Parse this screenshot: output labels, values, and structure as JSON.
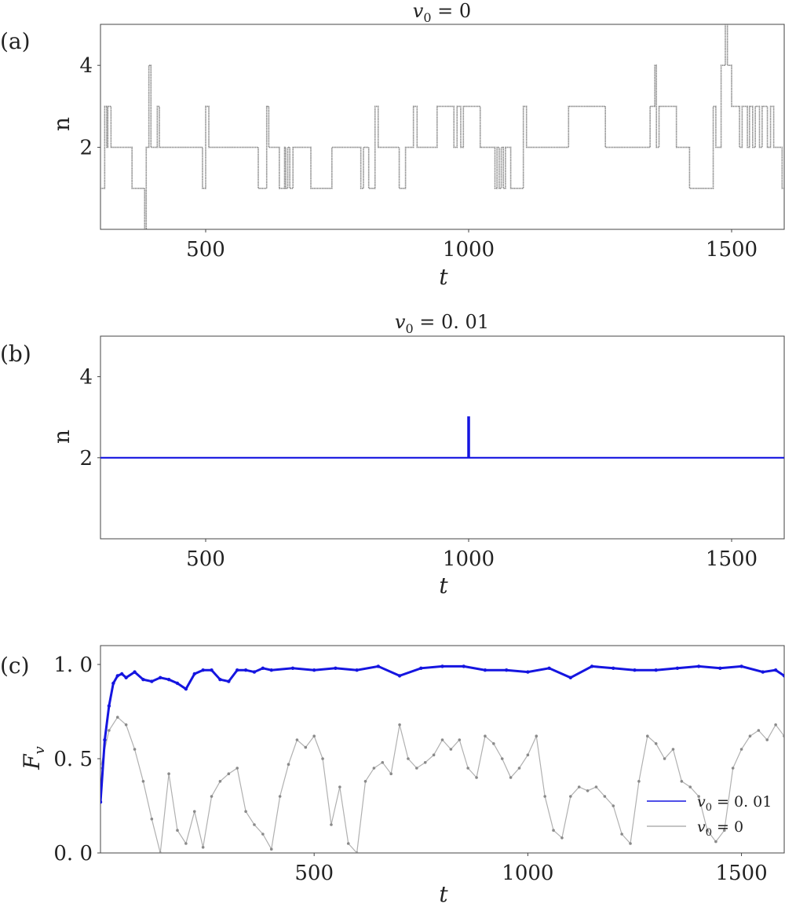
{
  "panels": {
    "a": {
      "label": "(a)",
      "title_main": "v",
      "title_sub": "0",
      "title_rest": " = 0",
      "ylabel": "n",
      "xlabel": "t"
    },
    "b": {
      "label": "(b)",
      "title_main": "v",
      "title_sub": "0",
      "title_rest": " = 0. 01",
      "ylabel": "n",
      "xlabel": "t"
    },
    "c": {
      "label": "(c)",
      "ylabel_main": "F",
      "ylabel_sub": "v",
      "xlabel": "t",
      "legend": [
        {
          "main": "v",
          "sub": "0",
          "rest": " = 0. 01",
          "color": "#1515e0"
        },
        {
          "main": "v",
          "sub": "0",
          "rest": " = 0",
          "color": "#b0b0b0"
        }
      ]
    }
  },
  "colors": {
    "gray_series": "#8a8a8a",
    "blue_series": "#1515e0",
    "light_gray": "#b0b0b0"
  },
  "chart_data": [
    {
      "id": "a",
      "type": "line",
      "xlim": [
        300,
        1600
      ],
      "ylim": [
        0.0,
        5.0
      ],
      "xticks": [
        500,
        1000,
        1500
      ],
      "xtick_labels": [
        "500",
        "1000",
        "1500"
      ],
      "yticks": [
        2,
        4
      ],
      "ytick_labels": [
        "2",
        "4"
      ],
      "grid": false,
      "steps": [
        [
          300,
          1
        ],
        [
          308,
          3
        ],
        [
          312,
          2
        ],
        [
          314,
          3
        ],
        [
          320,
          2
        ],
        [
          360,
          1
        ],
        [
          384,
          0
        ],
        [
          387,
          2
        ],
        [
          392,
          4
        ],
        [
          396,
          2
        ],
        [
          408,
          3
        ],
        [
          412,
          2
        ],
        [
          494,
          1
        ],
        [
          500,
          3
        ],
        [
          506,
          2
        ],
        [
          600,
          1
        ],
        [
          616,
          3
        ],
        [
          620,
          2
        ],
        [
          640,
          1
        ],
        [
          650,
          2
        ],
        [
          652,
          1
        ],
        [
          656,
          2
        ],
        [
          660,
          1
        ],
        [
          666,
          2
        ],
        [
          700,
          1
        ],
        [
          740,
          2
        ],
        [
          795,
          1
        ],
        [
          800,
          2
        ],
        [
          810,
          1
        ],
        [
          822,
          3
        ],
        [
          828,
          2
        ],
        [
          868,
          1
        ],
        [
          880,
          2
        ],
        [
          895,
          3
        ],
        [
          902,
          2
        ],
        [
          940,
          3
        ],
        [
          972,
          2
        ],
        [
          978,
          3
        ],
        [
          985,
          2
        ],
        [
          990,
          3
        ],
        [
          1022,
          2
        ],
        [
          1050,
          1
        ],
        [
          1054,
          2
        ],
        [
          1058,
          1
        ],
        [
          1062,
          2
        ],
        [
          1066,
          1
        ],
        [
          1070,
          2
        ],
        [
          1080,
          1
        ],
        [
          1104,
          3
        ],
        [
          1110,
          2
        ],
        [
          1190,
          3
        ],
        [
          1260,
          2
        ],
        [
          1345,
          3
        ],
        [
          1354,
          4
        ],
        [
          1357,
          2
        ],
        [
          1362,
          3
        ],
        [
          1395,
          2
        ],
        [
          1420,
          1
        ],
        [
          1465,
          3
        ],
        [
          1470,
          2
        ],
        [
          1480,
          4
        ],
        [
          1488,
          5
        ],
        [
          1492,
          4
        ],
        [
          1500,
          3
        ],
        [
          1515,
          2
        ],
        [
          1520,
          3
        ],
        [
          1530,
          2
        ],
        [
          1534,
          3
        ],
        [
          1540,
          2
        ],
        [
          1545,
          3
        ],
        [
          1553,
          2
        ],
        [
          1558,
          3
        ],
        [
          1568,
          2
        ],
        [
          1574,
          3
        ],
        [
          1580,
          2
        ],
        [
          1596,
          1
        ],
        [
          1600,
          1
        ]
      ]
    },
    {
      "id": "b",
      "type": "line",
      "xlim": [
        300,
        1600
      ],
      "ylim": [
        0.0,
        5.0
      ],
      "xticks": [
        500,
        1000,
        1500
      ],
      "xtick_labels": [
        "500",
        "1000",
        "1500"
      ],
      "yticks": [
        2,
        4
      ],
      "ytick_labels": [
        "2",
        "4"
      ],
      "grid": false,
      "steps": [
        [
          300,
          2
        ],
        [
          999,
          3
        ],
        [
          1001,
          2
        ],
        [
          1600,
          2
        ]
      ]
    },
    {
      "id": "c",
      "type": "line",
      "xlim": [
        0,
        1600
      ],
      "ylim": [
        0.0,
        1.1
      ],
      "xticks": [
        500,
        1000,
        1500
      ],
      "xtick_labels": [
        "500",
        "1000",
        "1500"
      ],
      "yticks": [
        0.0,
        0.5,
        1.0
      ],
      "ytick_labels": [
        "0. 0",
        "0. 5",
        "1. 0"
      ],
      "grid": false,
      "legend_position": "lower right",
      "series": [
        {
          "name": "v0 = 0. 01",
          "color": "#1515e0",
          "x": [
            0,
            10,
            20,
            30,
            40,
            50,
            60,
            80,
            100,
            120,
            140,
            160,
            180,
            200,
            220,
            240,
            260,
            280,
            300,
            320,
            340,
            360,
            380,
            400,
            450,
            500,
            550,
            600,
            650,
            700,
            750,
            800,
            850,
            900,
            950,
            1000,
            1050,
            1100,
            1150,
            1200,
            1250,
            1300,
            1350,
            1400,
            1450,
            1500,
            1550,
            1580,
            1600
          ],
          "y": [
            0.27,
            0.6,
            0.78,
            0.9,
            0.94,
            0.95,
            0.93,
            0.96,
            0.92,
            0.91,
            0.93,
            0.92,
            0.9,
            0.87,
            0.95,
            0.97,
            0.97,
            0.92,
            0.91,
            0.97,
            0.97,
            0.96,
            0.98,
            0.97,
            0.98,
            0.97,
            0.98,
            0.97,
            0.99,
            0.94,
            0.98,
            0.99,
            0.99,
            0.97,
            0.97,
            0.96,
            0.98,
            0.93,
            0.99,
            0.98,
            0.97,
            0.97,
            0.98,
            0.99,
            0.98,
            0.99,
            0.96,
            0.97,
            0.94
          ]
        },
        {
          "name": "v0 = 0",
          "color": "#8a8a8a",
          "x": [
            0,
            20,
            40,
            60,
            80,
            100,
            120,
            140,
            160,
            180,
            200,
            220,
            240,
            260,
            280,
            300,
            320,
            340,
            360,
            380,
            400,
            420,
            440,
            460,
            480,
            500,
            520,
            540,
            560,
            580,
            600,
            620,
            640,
            660,
            680,
            700,
            720,
            740,
            760,
            780,
            800,
            820,
            840,
            860,
            880,
            900,
            920,
            940,
            960,
            980,
            1000,
            1020,
            1040,
            1060,
            1080,
            1100,
            1120,
            1140,
            1160,
            1180,
            1200,
            1220,
            1240,
            1260,
            1280,
            1300,
            1320,
            1340,
            1360,
            1380,
            1400,
            1420,
            1440,
            1460,
            1480,
            1500,
            1520,
            1540,
            1560,
            1580,
            1600
          ],
          "y": [
            0.45,
            0.65,
            0.72,
            0.68,
            0.55,
            0.38,
            0.18,
            0.0,
            0.42,
            0.12,
            0.05,
            0.22,
            0.03,
            0.3,
            0.38,
            0.42,
            0.45,
            0.22,
            0.15,
            0.1,
            0.02,
            0.3,
            0.47,
            0.6,
            0.56,
            0.62,
            0.5,
            0.15,
            0.35,
            0.05,
            0.0,
            0.38,
            0.45,
            0.48,
            0.42,
            0.68,
            0.5,
            0.45,
            0.48,
            0.52,
            0.6,
            0.55,
            0.6,
            0.45,
            0.4,
            0.62,
            0.58,
            0.5,
            0.4,
            0.45,
            0.52,
            0.62,
            0.3,
            0.12,
            0.08,
            0.3,
            0.35,
            0.33,
            0.35,
            0.3,
            0.25,
            0.1,
            0.05,
            0.38,
            0.62,
            0.58,
            0.5,
            0.55,
            0.38,
            0.35,
            0.3,
            0.12,
            0.06,
            0.12,
            0.45,
            0.55,
            0.62,
            0.65,
            0.6,
            0.68,
            0.62
          ]
        }
      ]
    }
  ]
}
